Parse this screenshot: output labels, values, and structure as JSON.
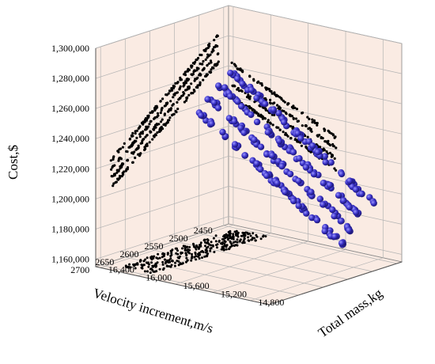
{
  "chart_data": {
    "type": "scatter",
    "projection": "3d",
    "axes": {
      "x": {
        "label": "Velocity increment,m/s",
        "ticks": [
          2450,
          2500,
          2550,
          2600,
          2650,
          2700
        ],
        "tick_labels": [
          "2450",
          "2500",
          "2550",
          "2600",
          "2650",
          "2700"
        ],
        "range": [
          2440,
          2710
        ]
      },
      "y": {
        "label": "Total mass,kg",
        "ticks": [
          14800,
          15200,
          15600,
          16000,
          16400
        ],
        "tick_labels": [
          "14,800",
          "15,200",
          "15,600",
          "16,000",
          "16,400"
        ],
        "range": [
          14600,
          16450
        ]
      },
      "z": {
        "label": "Cost,$",
        "ticks": [
          1160000,
          1180000,
          1200000,
          1220000,
          1240000,
          1260000,
          1280000,
          1300000
        ],
        "tick_labels": [
          "1,160,000",
          "1,180,000",
          "1,200,000",
          "1,220,000",
          "1,240,000",
          "1,260,000",
          "1,280,000",
          "1,300,000"
        ],
        "range": [
          1155000,
          1300000
        ]
      }
    },
    "grid": true,
    "legend": "none",
    "colors": {
      "pareto_points": "#3a32c8",
      "projection_points": "#000000",
      "wall_fill": "#faebe3",
      "grid": "#b4b4b4"
    },
    "series": [
      {
        "role": "pareto-front",
        "bands": [
          {
            "mass": [
              14620,
              16290
            ],
            "cost": [
              1199000,
              1262000
            ],
            "velocity_start": 2468,
            "velocity_end": 2640
          },
          {
            "mass": [
              14620,
              16290
            ],
            "cost": [
              1192000,
              1255000
            ],
            "velocity_start": 2490,
            "velocity_end": 2660
          },
          {
            "mass": [
              14620,
              16290
            ],
            "cost": [
              1185000,
              1248000
            ],
            "velocity_start": 2510,
            "velocity_end": 2680
          },
          {
            "mass": [
              14620,
              16290
            ],
            "cost": [
              1178000,
              1241000
            ],
            "velocity_start": 2530,
            "velocity_end": 2700
          }
        ]
      },
      {
        "role": "projection-left-wall",
        "bands": [
          {
            "velocity": [
              2460,
              2680
            ],
            "cost": [
              1222000,
              1283000
            ]
          },
          {
            "velocity": [
              2460,
              2680
            ],
            "cost": [
              1216000,
              1277000
            ]
          },
          {
            "velocity": [
              2460,
              2680
            ],
            "cost": [
              1210000,
              1271000
            ]
          },
          {
            "velocity": [
              2460,
              2680
            ],
            "cost": [
              1204000,
              1265000
            ]
          }
        ]
      },
      {
        "role": "projection-right-wall",
        "bands": [
          {
            "mass": [
              15300,
              16420
            ],
            "cost": [
              1228000,
              1262000
            ]
          },
          {
            "mass": [
              15300,
              16420
            ],
            "cost": [
              1221000,
              1255000
            ]
          },
          {
            "mass": [
              15300,
              16420
            ],
            "cost": [
              1214000,
              1248000
            ]
          },
          {
            "mass": [
              15300,
              16420
            ],
            "cost": [
              1207000,
              1241000
            ]
          }
        ]
      },
      {
        "role": "projection-floor",
        "velocity": [
          2455,
          2690
        ],
        "mass": [
          15950,
          16300
        ]
      }
    ]
  }
}
